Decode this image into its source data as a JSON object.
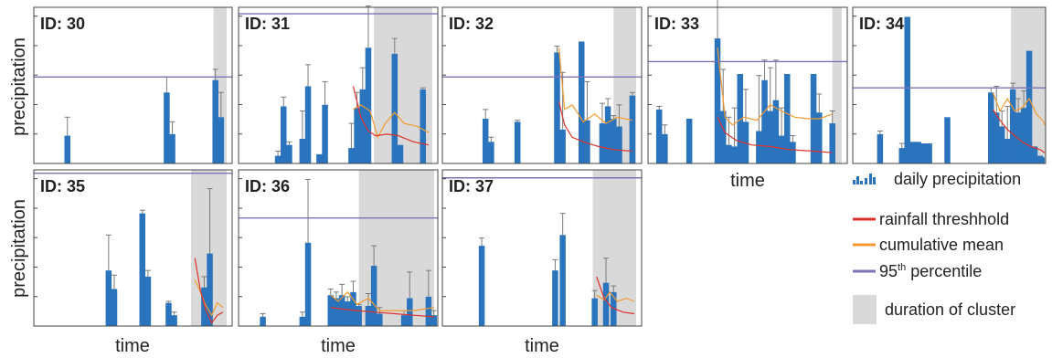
{
  "labels": {
    "ylabel": "precipitation",
    "xlabel": "time"
  },
  "legend": {
    "items": [
      {
        "kind": "bars",
        "label": "daily precipitation",
        "color": "#2a73bd"
      },
      {
        "kind": "line",
        "label": "rainfall threshhold",
        "color": "#e0302a"
      },
      {
        "kind": "line",
        "label": "cumulative mean",
        "color": "#f39a2e"
      },
      {
        "kind": "line",
        "label": "95th percentile",
        "sup": "th",
        "color": "#7b72b8"
      },
      {
        "kind": "patch",
        "label": "duration of cluster",
        "color": "#d9d9d9"
      }
    ]
  },
  "colors": {
    "bar": "#2a73bd",
    "threshold": "#e0302a",
    "mean": "#f39a2e",
    "percentile": "#7b72b8",
    "cluster": "#d9d9d9",
    "errorbar": "#7a7a7a",
    "axis": "#444444"
  },
  "chart_data": [
    {
      "type": "bar",
      "title": "ID: 30",
      "xlim": [
        0,
        100
      ],
      "ylim": [
        0,
        100
      ],
      "bars": [
        {
          "x": 15,
          "v": 18,
          "e": 12
        },
        {
          "x": 68,
          "v": 46,
          "e": 10
        },
        {
          "x": 71,
          "v": 19,
          "e": 8
        },
        {
          "x": 94,
          "v": 54,
          "e": 7
        },
        {
          "x": 97,
          "v": 30,
          "e": 16
        }
      ],
      "cluster": [
        93,
        100
      ],
      "percentile": 56,
      "threshold": [],
      "mean": []
    },
    {
      "type": "bar",
      "title": "ID: 31",
      "xlim": [
        0,
        100
      ],
      "ylim": [
        0,
        100
      ],
      "bars": [
        {
          "x": 18,
          "v": 5,
          "e": 3
        },
        {
          "x": 21,
          "v": 37,
          "e": 6
        },
        {
          "x": 24,
          "v": 12,
          "e": 2
        },
        {
          "x": 31,
          "v": 16,
          "e": 18
        },
        {
          "x": 34,
          "v": 50,
          "e": 14
        },
        {
          "x": 40,
          "v": 6,
          "e": 0
        },
        {
          "x": 43,
          "v": 38,
          "e": 15
        },
        {
          "x": 57,
          "v": 10,
          "e": 16
        },
        {
          "x": 60,
          "v": 36,
          "e": 10
        },
        {
          "x": 63,
          "v": 48,
          "e": 14
        },
        {
          "x": 66,
          "v": 75,
          "e": 27
        },
        {
          "x": 80,
          "v": 71,
          "e": 10
        },
        {
          "x": 83,
          "v": 12,
          "e": 0
        },
        {
          "x": 95,
          "v": 48,
          "e": 1
        }
      ],
      "cluster": [
        69,
        100
      ],
      "percentile": 97,
      "threshold": [
        [
          58,
          50
        ],
        [
          62,
          30
        ],
        [
          66,
          21
        ],
        [
          70,
          18
        ],
        [
          76,
          19
        ],
        [
          82,
          18
        ],
        [
          90,
          14
        ],
        [
          98,
          12
        ]
      ],
      "mean": [
        [
          58,
          35
        ],
        [
          62,
          38
        ],
        [
          67,
          34
        ],
        [
          71,
          17
        ],
        [
          75,
          26
        ],
        [
          80,
          33
        ],
        [
          85,
          26
        ],
        [
          92,
          24
        ],
        [
          98,
          20
        ]
      ]
    },
    {
      "type": "bar",
      "title": "ID: 32",
      "xlim": [
        0,
        100
      ],
      "ylim": [
        0,
        100
      ],
      "bars": [
        {
          "x": 20,
          "v": 29,
          "e": 6
        },
        {
          "x": 23,
          "v": 14,
          "e": 3
        },
        {
          "x": 37,
          "v": 27,
          "e": 1
        },
        {
          "x": 58,
          "v": 72,
          "e": 4
        },
        {
          "x": 61,
          "v": 22,
          "e": 37
        },
        {
          "x": 71,
          "v": 79,
          "e": 0
        },
        {
          "x": 74,
          "v": 28,
          "e": 25
        },
        {
          "x": 82,
          "v": 26,
          "e": 13
        },
        {
          "x": 85,
          "v": 37,
          "e": 5
        },
        {
          "x": 88,
          "v": 29,
          "e": 2
        },
        {
          "x": 91,
          "v": 24,
          "e": 14
        },
        {
          "x": 98,
          "v": 44,
          "e": 2
        }
      ],
      "cluster": [
        88,
        100
      ],
      "percentile": 56,
      "threshold": [
        [
          59,
          40
        ],
        [
          62,
          25
        ],
        [
          66,
          17
        ],
        [
          72,
          14
        ],
        [
          80,
          11
        ],
        [
          88,
          9
        ],
        [
          98,
          8
        ]
      ],
      "mean": [
        [
          59,
          75
        ],
        [
          62,
          35
        ],
        [
          66,
          38
        ],
        [
          72,
          27
        ],
        [
          78,
          32
        ],
        [
          84,
          26
        ],
        [
          90,
          30
        ],
        [
          98,
          28
        ]
      ]
    },
    {
      "type": "bar",
      "title": "ID: 33",
      "xlim": [
        0,
        100
      ],
      "ylim": [
        0,
        100
      ],
      "bars": [
        {
          "x": 3,
          "v": 35,
          "e": 2
        },
        {
          "x": 6,
          "v": 19,
          "e": 6
        },
        {
          "x": 19,
          "v": 29,
          "e": 0
        },
        {
          "x": 34,
          "v": 81,
          "e": 32
        },
        {
          "x": 37,
          "v": 34,
          "e": 27
        },
        {
          "x": 40,
          "v": 12,
          "e": 18
        },
        {
          "x": 43,
          "v": 11,
          "e": 25
        },
        {
          "x": 46,
          "v": 58,
          "e": 0
        },
        {
          "x": 49,
          "v": 27,
          "e": 21
        },
        {
          "x": 56,
          "v": 21,
          "e": 36
        },
        {
          "x": 59,
          "v": 54,
          "e": 13
        },
        {
          "x": 62,
          "v": 34,
          "e": 28
        },
        {
          "x": 65,
          "v": 41,
          "e": 26
        },
        {
          "x": 68,
          "v": 18,
          "e": 18
        },
        {
          "x": 71,
          "v": 58,
          "e": 0
        },
        {
          "x": 74,
          "v": 14,
          "e": 4
        },
        {
          "x": 85,
          "v": 58,
          "e": 0
        },
        {
          "x": 88,
          "v": 33,
          "e": 12
        },
        {
          "x": 95,
          "v": 26,
          "e": 8
        }
      ],
      "cluster": [
        95,
        100
      ],
      "percentile": 66,
      "threshold": [
        [
          34,
          30
        ],
        [
          38,
          20
        ],
        [
          44,
          15
        ],
        [
          52,
          12
        ],
        [
          62,
          11
        ],
        [
          72,
          9
        ],
        [
          85,
          8
        ],
        [
          95,
          7
        ]
      ],
      "mean": [
        [
          34,
          75
        ],
        [
          38,
          30
        ],
        [
          42,
          25
        ],
        [
          48,
          30
        ],
        [
          55,
          28
        ],
        [
          62,
          38
        ],
        [
          68,
          34
        ],
        [
          75,
          30
        ],
        [
          82,
          29
        ],
        [
          88,
          29
        ],
        [
          95,
          32
        ]
      ]
    },
    {
      "type": "bar",
      "title": "ID: 34",
      "xlim": [
        0,
        100
      ],
      "ylim": [
        0,
        100
      ],
      "bars": [
        {
          "x": 12,
          "v": 19,
          "e": 2
        },
        {
          "x": 24,
          "v": 10,
          "e": 3
        },
        {
          "x": 27,
          "v": 95,
          "e": 0
        },
        {
          "x": 30,
          "v": 14,
          "e": 0
        },
        {
          "x": 33,
          "v": 14,
          "e": 0
        },
        {
          "x": 36,
          "v": 13,
          "e": 0
        },
        {
          "x": 39,
          "v": 13,
          "e": 0
        },
        {
          "x": 49,
          "v": 30,
          "e": 0
        },
        {
          "x": 73,
          "v": 46,
          "e": 3
        },
        {
          "x": 76,
          "v": 33,
          "e": 17
        },
        {
          "x": 79,
          "v": 24,
          "e": 10
        },
        {
          "x": 82,
          "v": 16,
          "e": 21
        },
        {
          "x": 85,
          "v": 48,
          "e": 4
        },
        {
          "x": 88,
          "v": 33,
          "e": 9
        },
        {
          "x": 91,
          "v": 36,
          "e": 11
        },
        {
          "x": 94,
          "v": 73,
          "e": 0
        },
        {
          "x": 97,
          "v": 11,
          "e": 0
        },
        {
          "x": 100,
          "v": 5,
          "e": 0
        },
        {
          "x": 103,
          "v": 4,
          "e": 0
        }
      ],
      "cluster": [
        84,
        104
      ],
      "percentile": 49,
      "threshold": [
        [
          74,
          35
        ],
        [
          78,
          28
        ],
        [
          82,
          22
        ],
        [
          86,
          18
        ],
        [
          90,
          14
        ],
        [
          95,
          11
        ],
        [
          100,
          9
        ],
        [
          104,
          7
        ]
      ],
      "mean": [
        [
          74,
          46
        ],
        [
          78,
          34
        ],
        [
          82,
          42
        ],
        [
          86,
          34
        ],
        [
          90,
          36
        ],
        [
          94,
          42
        ],
        [
          98,
          32
        ],
        [
          102,
          27
        ],
        [
          104,
          25
        ]
      ]
    },
    {
      "type": "bar",
      "title": "ID: 35",
      "xlim": [
        0,
        100
      ],
      "ylim": [
        0,
        100
      ],
      "bars": [
        {
          "x": 37,
          "v": 36,
          "e": 23
        },
        {
          "x": 40,
          "v": 24,
          "e": 9
        },
        {
          "x": 55,
          "v": 73,
          "e": 2
        },
        {
          "x": 58,
          "v": 32,
          "e": 4
        },
        {
          "x": 69,
          "v": 15,
          "e": 1
        },
        {
          "x": 72,
          "v": 7,
          "e": 2
        },
        {
          "x": 88,
          "v": 25,
          "e": 7
        },
        {
          "x": 91,
          "v": 47,
          "e": 42
        }
      ],
      "cluster": [
        81,
        100
      ],
      "percentile": 99,
      "threshold": [
        [
          83,
          44
        ],
        [
          86,
          23
        ],
        [
          89,
          10
        ],
        [
          92,
          2
        ],
        [
          95,
          7
        ],
        [
          98,
          9
        ]
      ],
      "mean": [
        [
          83,
          30
        ],
        [
          86,
          22
        ],
        [
          89,
          13
        ],
        [
          92,
          7
        ],
        [
          95,
          15
        ],
        [
          98,
          12
        ]
      ]
    },
    {
      "type": "bar",
      "title": "ID: 36",
      "xlim": [
        0,
        100
      ],
      "ylim": [
        0,
        100
      ],
      "bars": [
        {
          "x": 10,
          "v": 6,
          "e": 2
        },
        {
          "x": 31,
          "v": 6,
          "e": 3
        },
        {
          "x": 34,
          "v": 54,
          "e": 41
        },
        {
          "x": 46,
          "v": 20,
          "e": 4
        },
        {
          "x": 49,
          "v": 18,
          "e": 4
        },
        {
          "x": 52,
          "v": 20,
          "e": 7
        },
        {
          "x": 55,
          "v": 16,
          "e": 3
        },
        {
          "x": 58,
          "v": 22,
          "e": 7
        },
        {
          "x": 61,
          "v": 13,
          "e": 1
        },
        {
          "x": 66,
          "v": 13,
          "e": 8
        },
        {
          "x": 69,
          "v": 39,
          "e": 13
        },
        {
          "x": 72,
          "v": 8,
          "e": 4
        },
        {
          "x": 85,
          "v": 7,
          "e": 3
        },
        {
          "x": 88,
          "v": 18,
          "e": 17
        },
        {
          "x": 98,
          "v": 19,
          "e": 17
        },
        {
          "x": 101,
          "v": 7,
          "e": 3
        }
      ],
      "cluster": [
        61,
        101
      ],
      "percentile": 70,
      "threshold": [
        [
          46,
          12
        ],
        [
          52,
          11
        ],
        [
          60,
          10
        ],
        [
          70,
          9
        ],
        [
          80,
          8
        ],
        [
          90,
          7
        ],
        [
          101,
          6
        ]
      ],
      "mean": [
        [
          46,
          20
        ],
        [
          50,
          16
        ],
        [
          55,
          22
        ],
        [
          60,
          14
        ],
        [
          66,
          18
        ],
        [
          72,
          10
        ],
        [
          80,
          10
        ],
        [
          90,
          10
        ],
        [
          101,
          12
        ]
      ]
    },
    {
      "type": "bar",
      "title": "ID: 37",
      "xlim": [
        0,
        100
      ],
      "ylim": [
        0,
        100
      ],
      "bars": [
        {
          "x": 18,
          "v": 52,
          "e": 5
        },
        {
          "x": 57,
          "v": 36,
          "e": 7
        },
        {
          "x": 61,
          "v": 59,
          "e": 14
        },
        {
          "x": 78,
          "v": 18,
          "e": 5
        },
        {
          "x": 84,
          "v": 28,
          "e": 16
        },
        {
          "x": 88,
          "v": 22,
          "e": 4
        }
      ],
      "cluster": [
        77,
        100
      ],
      "percentile": 96,
      "threshold": [
        [
          79,
          32
        ],
        [
          83,
          18
        ],
        [
          87,
          12
        ],
        [
          93,
          9
        ],
        [
          99,
          8
        ]
      ],
      "mean": [
        [
          79,
          20
        ],
        [
          83,
          17
        ],
        [
          86,
          22
        ],
        [
          90,
          16
        ],
        [
          95,
          18
        ],
        [
          99,
          16
        ]
      ]
    }
  ]
}
